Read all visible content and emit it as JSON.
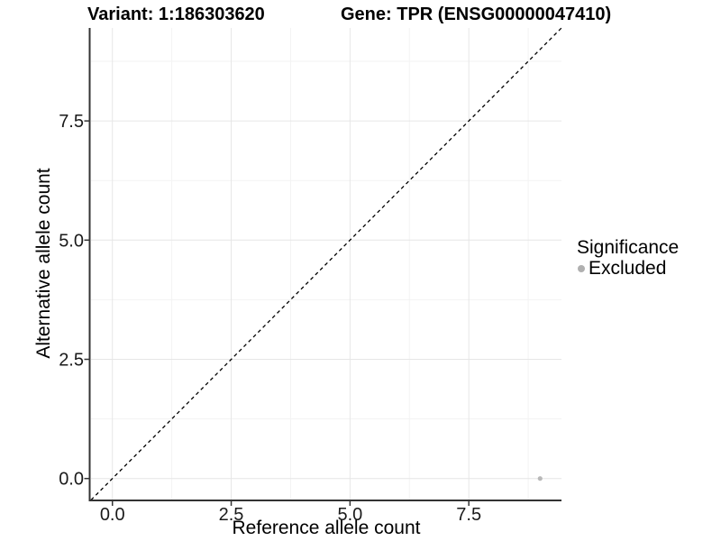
{
  "titles": {
    "variant": "Variant: 1:186303620",
    "gene": "Gene: TPR (ENSG00000047410)"
  },
  "legend": {
    "title": "Significance",
    "items": [
      {
        "label": "Excluded",
        "color": "#b0b0b0"
      }
    ]
  },
  "chart_data": {
    "type": "scatter",
    "title_left": "Variant: 1:186303620",
    "title_right": "Gene: TPR (ENSG00000047410)",
    "xlabel": "Reference allele count",
    "ylabel": "Alternative allele count",
    "xlim": [
      -0.45,
      9.45
    ],
    "ylim": [
      -0.45,
      9.45
    ],
    "x_major_ticks": [
      0,
      2.5,
      5,
      7.5
    ],
    "y_major_ticks": [
      0,
      2.5,
      5,
      7.5
    ],
    "x_tick_labels": [
      "0.0",
      "2.5",
      "5.0",
      "7.5"
    ],
    "y_tick_labels": [
      "0.0",
      "2.5",
      "5.0",
      "7.5"
    ],
    "x_minor_ticks": [
      1.25,
      3.75,
      6.25,
      8.75
    ],
    "y_minor_ticks": [
      1.25,
      3.75,
      6.25,
      8.75
    ],
    "grid": "major+minor",
    "legend_position": "right",
    "series": [
      {
        "name": "Excluded",
        "color": "#b8b8b8",
        "points": [
          {
            "x": 9,
            "y": 0
          }
        ]
      }
    ],
    "reference_line": {
      "shape": "diagonal-y-equals-x",
      "slope": 1,
      "intercept": 0,
      "line_style": "dashed",
      "color": "#000000"
    },
    "colors": {
      "axis_line": "#333333",
      "tick_mark": "#333333",
      "tick_label": "#1a1a1a",
      "grid_major": "#e6e6e6",
      "grid_minor": "#f3f3f3"
    }
  }
}
